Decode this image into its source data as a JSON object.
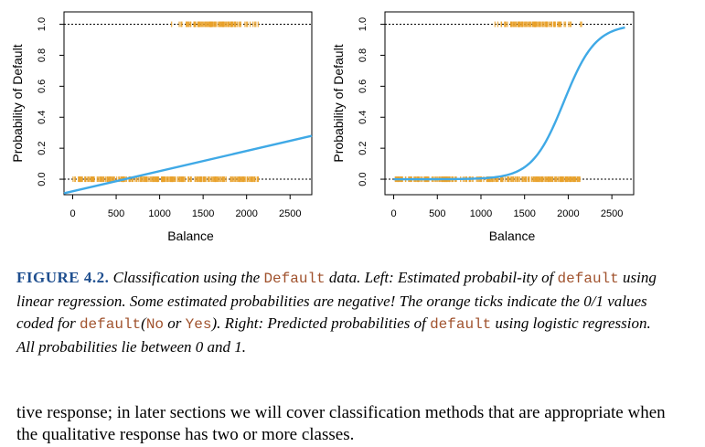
{
  "chart_data": [
    {
      "type": "line",
      "panel": "left",
      "xlabel": "Balance",
      "ylabel": "Probability of Default",
      "xlim": [
        -100,
        2750
      ],
      "ylim": [
        -0.1,
        1.08
      ],
      "x_ticks": [
        0,
        500,
        1000,
        1500,
        2000,
        2500
      ],
      "x_tick_labels": [
        "0",
        "500",
        "1000",
        "1500",
        "2000",
        "2500"
      ],
      "y_ticks": [
        0.0,
        0.2,
        0.4,
        0.6,
        0.8,
        1.0
      ],
      "y_tick_labels": [
        "0.0",
        "0.2",
        "0.4",
        "0.6",
        "0.8",
        "1.0"
      ],
      "reference_lines_y": [
        0,
        1
      ],
      "series": [
        {
          "kind": "linear",
          "color": "#3fa9e6",
          "x": [
            -100,
            2750
          ],
          "y": [
            -0.091,
            0.28
          ]
        }
      ],
      "ticks": [
        {
          "color": "#e8a12a",
          "y": 0,
          "x_from": 0,
          "x_to": 2150
        },
        {
          "color": "#e8a12a",
          "y": 1,
          "x_from": 1050,
          "x_to": 2300
        }
      ]
    },
    {
      "type": "line",
      "panel": "right",
      "xlabel": "Balance",
      "ylabel": "Probability of Default",
      "xlim": [
        -100,
        2750
      ],
      "ylim": [
        -0.1,
        1.08
      ],
      "x_ticks": [
        0,
        500,
        1000,
        1500,
        2000,
        2500
      ],
      "x_tick_labels": [
        "0",
        "500",
        "1000",
        "1500",
        "2000",
        "2500"
      ],
      "y_ticks": [
        0.0,
        0.2,
        0.4,
        0.6,
        0.8,
        1.0
      ],
      "y_tick_labels": [
        "0.0",
        "0.2",
        "0.4",
        "0.6",
        "0.8",
        "1.0"
      ],
      "reference_lines_y": [
        0,
        1
      ],
      "series": [
        {
          "kind": "logistic",
          "color": "#3fa9e6",
          "x_from": 0,
          "x_to": 2650,
          "midpoint": 1950,
          "rate": 0.0055
        }
      ],
      "ticks": [
        {
          "color": "#e8a12a",
          "y": 0,
          "x_from": 0,
          "x_to": 2150
        },
        {
          "color": "#e8a12a",
          "y": 1,
          "x_from": 1050,
          "x_to": 2300
        }
      ]
    }
  ],
  "caption": {
    "label": "FIGURE 4.2.",
    "t1": " Classification using the ",
    "c1": "Default",
    "t2": " data. Left: Estimated probabil-ity of ",
    "c2": "default",
    "t3": " using linear regression. Some estimated probabilities are negative! The orange ticks indicate the 0/1 values coded for ",
    "c3": "default",
    "t4": "(",
    "c4": "No",
    "t5": " or ",
    "c5": "Yes",
    "t6": "). Right: Predicted probabilities of ",
    "c6": "default",
    "t7": " using logistic regression. All probabilities lie between 0 and 1."
  },
  "body_text": "tive response; in later sections we will cover classification methods that are appropriate when the qualitative response has two or more classes."
}
